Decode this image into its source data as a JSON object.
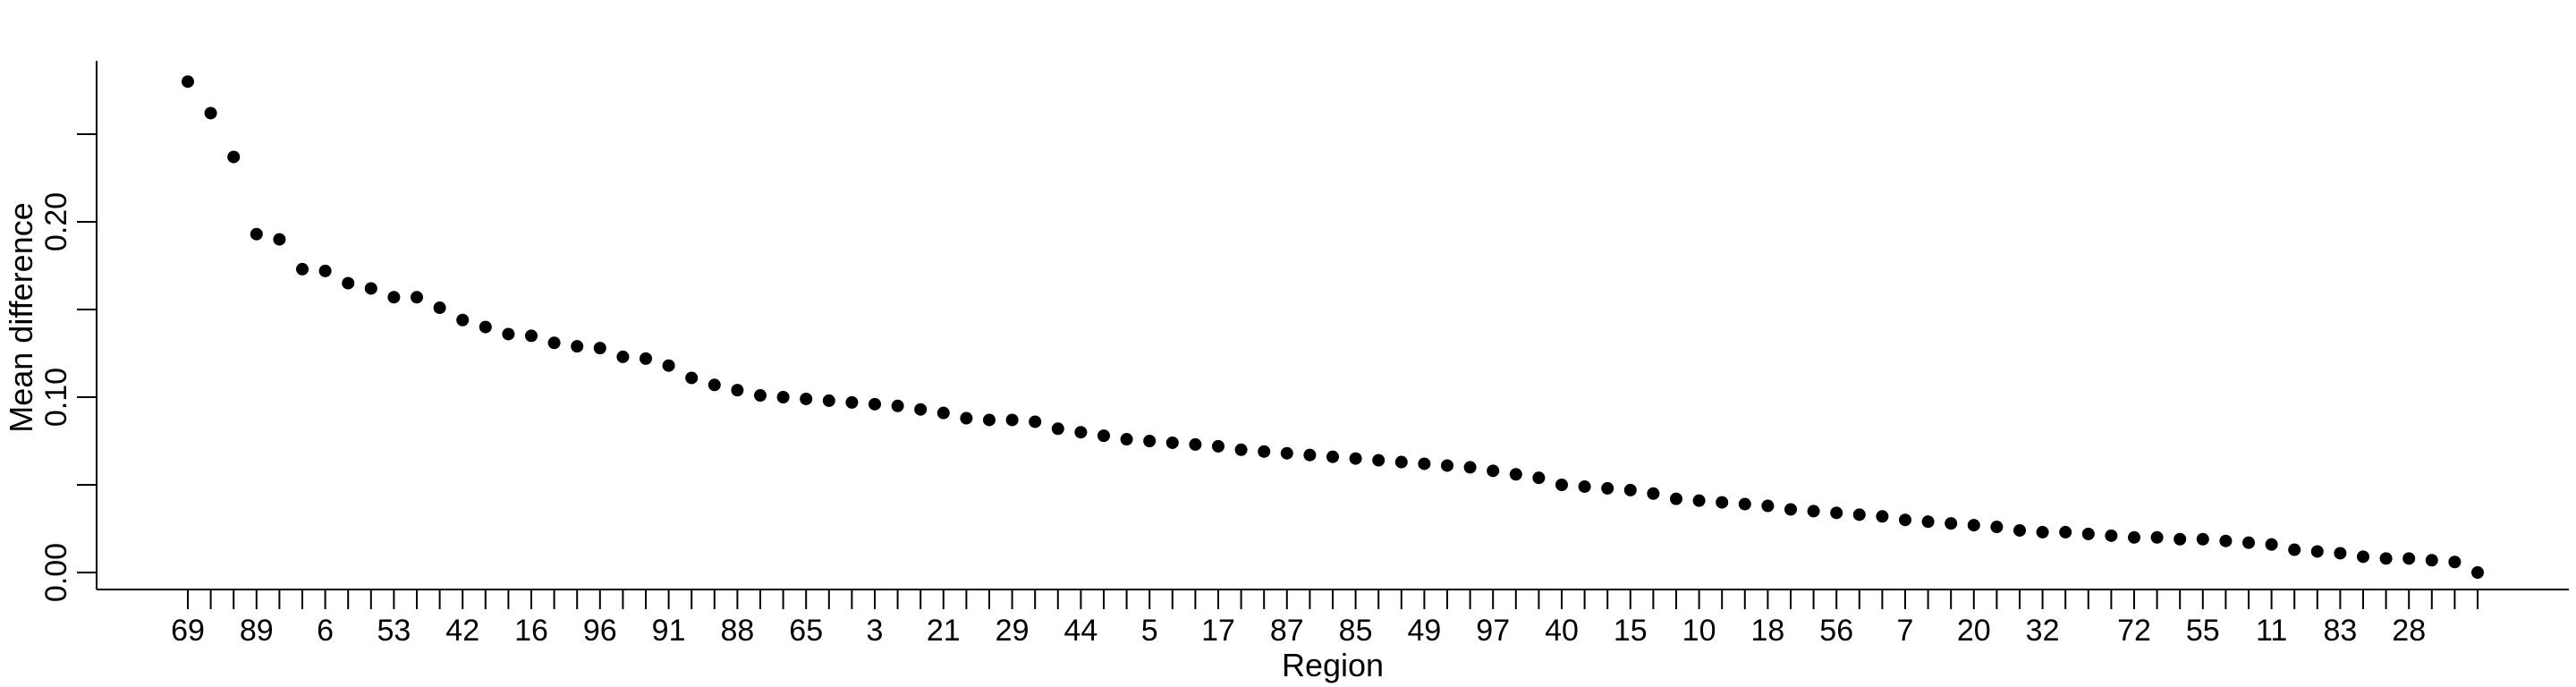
{
  "chart_data": {
    "type": "scatter",
    "xlabel": "Region",
    "ylabel": "Mean difference",
    "ylim": [
      0,
      0.25
    ],
    "yticks": [
      "0.00",
      "0.10",
      "0.20"
    ],
    "x_tick_labels": [
      {
        "index": 1,
        "label": "69"
      },
      {
        "index": 4,
        "label": "89"
      },
      {
        "index": 7,
        "label": "6"
      },
      {
        "index": 10,
        "label": "53"
      },
      {
        "index": 13,
        "label": "42"
      },
      {
        "index": 16,
        "label": "16"
      },
      {
        "index": 19,
        "label": "96"
      },
      {
        "index": 22,
        "label": "91"
      },
      {
        "index": 25,
        "label": "88"
      },
      {
        "index": 28,
        "label": "65"
      },
      {
        "index": 31,
        "label": "3"
      },
      {
        "index": 34,
        "label": "21"
      },
      {
        "index": 37,
        "label": "29"
      },
      {
        "index": 40,
        "label": "44"
      },
      {
        "index": 43,
        "label": "5"
      },
      {
        "index": 46,
        "label": "17"
      },
      {
        "index": 49,
        "label": "87"
      },
      {
        "index": 52,
        "label": "85"
      },
      {
        "index": 55,
        "label": "49"
      },
      {
        "index": 58,
        "label": "97"
      },
      {
        "index": 61,
        "label": "40"
      },
      {
        "index": 64,
        "label": "15"
      },
      {
        "index": 67,
        "label": "10"
      },
      {
        "index": 70,
        "label": "18"
      },
      {
        "index": 73,
        "label": "56"
      },
      {
        "index": 76,
        "label": "7"
      },
      {
        "index": 79,
        "label": "20"
      },
      {
        "index": 82,
        "label": "32"
      },
      {
        "index": 86,
        "label": "72"
      },
      {
        "index": 89,
        "label": "55"
      },
      {
        "index": 92,
        "label": "11"
      },
      {
        "index": 95,
        "label": "83"
      },
      {
        "index": 98,
        "label": "28"
      }
    ],
    "values": [
      0.28,
      0.262,
      0.237,
      0.193,
      0.19,
      0.173,
      0.172,
      0.165,
      0.162,
      0.157,
      0.157,
      0.151,
      0.144,
      0.14,
      0.136,
      0.135,
      0.131,
      0.129,
      0.128,
      0.123,
      0.122,
      0.118,
      0.111,
      0.107,
      0.104,
      0.101,
      0.1,
      0.099,
      0.098,
      0.097,
      0.096,
      0.095,
      0.093,
      0.091,
      0.088,
      0.087,
      0.087,
      0.086,
      0.082,
      0.08,
      0.078,
      0.076,
      0.075,
      0.074,
      0.073,
      0.072,
      0.07,
      0.069,
      0.068,
      0.067,
      0.066,
      0.065,
      0.064,
      0.063,
      0.062,
      0.061,
      0.06,
      0.058,
      0.056,
      0.054,
      0.05,
      0.049,
      0.048,
      0.047,
      0.045,
      0.042,
      0.041,
      0.04,
      0.039,
      0.038,
      0.036,
      0.035,
      0.034,
      0.033,
      0.032,
      0.03,
      0.029,
      0.028,
      0.027,
      0.026,
      0.024,
      0.023,
      0.023,
      0.022,
      0.021,
      0.02,
      0.02,
      0.019,
      0.019,
      0.018,
      0.017,
      0.016,
      0.013,
      0.012,
      0.011,
      0.009,
      0.008,
      0.008,
      0.007,
      0.006,
      0.0
    ],
    "marker_color": "#000000",
    "grid": false
  }
}
